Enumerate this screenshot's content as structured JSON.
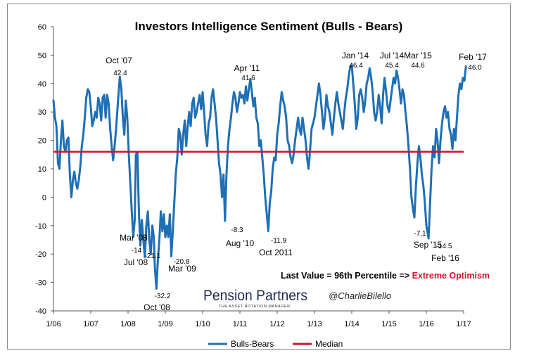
{
  "chart_data": {
    "type": "line",
    "title": "Investors Intelligence Sentiment (Bulls - Bears)",
    "ylim": [
      -40,
      60
    ],
    "yticks": [
      -40,
      -30,
      -20,
      -10,
      0,
      10,
      20,
      30,
      40,
      50,
      60
    ],
    "x_tick_labels": [
      "1/06",
      "1/07",
      "1/08",
      "1/09",
      "1/10",
      "1/11",
      "1/12",
      "1/13",
      "1/14",
      "1/15",
      "1/16",
      "1/17"
    ],
    "grid": false,
    "legend_position": "bottom",
    "series": [
      {
        "name": "Bulls-Bears",
        "color": "#1f6fb5",
        "points": [
          [
            2006.0,
            34
          ],
          [
            2006.04,
            28
          ],
          [
            2006.08,
            25
          ],
          [
            2006.12,
            12
          ],
          [
            2006.16,
            10
          ],
          [
            2006.2,
            20
          ],
          [
            2006.24,
            27
          ],
          [
            2006.28,
            18
          ],
          [
            2006.32,
            16
          ],
          [
            2006.36,
            20
          ],
          [
            2006.4,
            21
          ],
          [
            2006.44,
            8
          ],
          [
            2006.48,
            0
          ],
          [
            2006.52,
            6
          ],
          [
            2006.56,
            9
          ],
          [
            2006.6,
            5
          ],
          [
            2006.64,
            3
          ],
          [
            2006.68,
            6
          ],
          [
            2006.72,
            11
          ],
          [
            2006.76,
            18
          ],
          [
            2006.8,
            22
          ],
          [
            2006.84,
            28
          ],
          [
            2006.88,
            35
          ],
          [
            2006.92,
            38
          ],
          [
            2006.96,
            37
          ],
          [
            2007.0,
            32
          ],
          [
            2007.04,
            25
          ],
          [
            2007.08,
            27
          ],
          [
            2007.12,
            30
          ],
          [
            2007.16,
            28
          ],
          [
            2007.2,
            35
          ],
          [
            2007.24,
            33
          ],
          [
            2007.28,
            27
          ],
          [
            2007.32,
            35
          ],
          [
            2007.36,
            36
          ],
          [
            2007.4,
            28
          ],
          [
            2007.44,
            36
          ],
          [
            2007.48,
            33
          ],
          [
            2007.52,
            24
          ],
          [
            2007.56,
            18
          ],
          [
            2007.6,
            13
          ],
          [
            2007.64,
            18
          ],
          [
            2007.68,
            24
          ],
          [
            2007.72,
            32
          ],
          [
            2007.78,
            42.4
          ],
          [
            2007.82,
            38
          ],
          [
            2007.86,
            28
          ],
          [
            2007.9,
            22
          ],
          [
            2007.94,
            34
          ],
          [
            2007.98,
            28
          ],
          [
            2008.02,
            15
          ],
          [
            2008.06,
            5
          ],
          [
            2008.1,
            -5
          ],
          [
            2008.14,
            -14
          ],
          [
            2008.18,
            -8
          ],
          [
            2008.21,
            15
          ],
          [
            2008.25,
            16
          ],
          [
            2008.29,
            -5
          ],
          [
            2008.33,
            -17
          ],
          [
            2008.37,
            -8
          ],
          [
            2008.41,
            -15
          ],
          [
            2008.45,
            -21.1
          ],
          [
            2008.49,
            -10
          ],
          [
            2008.53,
            -5
          ],
          [
            2008.57,
            -15
          ],
          [
            2008.61,
            -20
          ],
          [
            2008.65,
            -10
          ],
          [
            2008.69,
            -14
          ],
          [
            2008.72,
            -25
          ],
          [
            2008.76,
            -32.2
          ],
          [
            2008.8,
            -22
          ],
          [
            2008.84,
            -15
          ],
          [
            2008.88,
            -5
          ],
          [
            2008.92,
            -12
          ],
          [
            2008.96,
            -6
          ],
          [
            2009.0,
            -14
          ],
          [
            2009.04,
            -10
          ],
          [
            2009.08,
            -14
          ],
          [
            2009.12,
            -6
          ],
          [
            2009.16,
            -20.8
          ],
          [
            2009.2,
            -12
          ],
          [
            2009.24,
            -2
          ],
          [
            2009.28,
            8
          ],
          [
            2009.32,
            14
          ],
          [
            2009.36,
            24
          ],
          [
            2009.4,
            22
          ],
          [
            2009.44,
            15
          ],
          [
            2009.48,
            22
          ],
          [
            2009.52,
            27
          ],
          [
            2009.56,
            18
          ],
          [
            2009.6,
            25
          ],
          [
            2009.64,
            30
          ],
          [
            2009.68,
            25
          ],
          [
            2009.72,
            33
          ],
          [
            2009.76,
            35
          ],
          [
            2009.8,
            28
          ],
          [
            2009.84,
            30
          ],
          [
            2009.88,
            33
          ],
          [
            2009.92,
            36
          ],
          [
            2009.96,
            31
          ],
          [
            2010.0,
            37
          ],
          [
            2010.04,
            30
          ],
          [
            2010.08,
            22
          ],
          [
            2010.12,
            18
          ],
          [
            2010.16,
            26
          ],
          [
            2010.2,
            28
          ],
          [
            2010.24,
            35
          ],
          [
            2010.28,
            38
          ],
          [
            2010.32,
            33
          ],
          [
            2010.36,
            28
          ],
          [
            2010.4,
            20
          ],
          [
            2010.44,
            12
          ],
          [
            2010.48,
            8
          ],
          [
            2010.52,
            0
          ],
          [
            2010.56,
            8
          ],
          [
            2010.6,
            -8.3
          ],
          [
            2010.64,
            8
          ],
          [
            2010.68,
            18
          ],
          [
            2010.72,
            24
          ],
          [
            2010.76,
            28
          ],
          [
            2010.8,
            33
          ],
          [
            2010.84,
            37
          ],
          [
            2010.88,
            35
          ],
          [
            2010.92,
            30
          ],
          [
            2010.96,
            33
          ],
          [
            2011.0,
            37
          ],
          [
            2011.04,
            35
          ],
          [
            2011.08,
            36
          ],
          [
            2011.12,
            33
          ],
          [
            2011.16,
            39
          ],
          [
            2011.2,
            34
          ],
          [
            2011.24,
            38
          ],
          [
            2011.28,
            41.6
          ],
          [
            2011.32,
            37
          ],
          [
            2011.36,
            32
          ],
          [
            2011.4,
            35
          ],
          [
            2011.44,
            28
          ],
          [
            2011.48,
            26
          ],
          [
            2011.52,
            18
          ],
          [
            2011.56,
            20
          ],
          [
            2011.6,
            14
          ],
          [
            2011.64,
            8
          ],
          [
            2011.68,
            0
          ],
          [
            2011.72,
            -6
          ],
          [
            2011.76,
            -11.9
          ],
          [
            2011.8,
            -2
          ],
          [
            2011.84,
            2
          ],
          [
            2011.88,
            10
          ],
          [
            2011.92,
            14
          ],
          [
            2011.96,
            13
          ],
          [
            2012.0,
            22
          ],
          [
            2012.04,
            26
          ],
          [
            2012.08,
            32
          ],
          [
            2012.12,
            37
          ],
          [
            2012.16,
            34
          ],
          [
            2012.2,
            32
          ],
          [
            2012.24,
            28
          ],
          [
            2012.28,
            20
          ],
          [
            2012.32,
            18
          ],
          [
            2012.36,
            14
          ],
          [
            2012.4,
            12
          ],
          [
            2012.44,
            15
          ],
          [
            2012.48,
            20
          ],
          [
            2012.52,
            24
          ],
          [
            2012.56,
            28
          ],
          [
            2012.6,
            24
          ],
          [
            2012.64,
            22
          ],
          [
            2012.68,
            28
          ],
          [
            2012.72,
            24
          ],
          [
            2012.76,
            20
          ],
          [
            2012.8,
            14
          ],
          [
            2012.84,
            10
          ],
          [
            2012.88,
            16
          ],
          [
            2012.92,
            24
          ],
          [
            2012.96,
            26
          ],
          [
            2013.0,
            28
          ],
          [
            2013.04,
            32
          ],
          [
            2013.08,
            36
          ],
          [
            2013.12,
            40
          ],
          [
            2013.16,
            36
          ],
          [
            2013.2,
            30
          ],
          [
            2013.24,
            24
          ],
          [
            2013.28,
            28
          ],
          [
            2013.32,
            36
          ],
          [
            2013.36,
            32
          ],
          [
            2013.4,
            30
          ],
          [
            2013.44,
            26
          ],
          [
            2013.48,
            22
          ],
          [
            2013.52,
            28
          ],
          [
            2013.56,
            33
          ],
          [
            2013.6,
            37
          ],
          [
            2013.64,
            33
          ],
          [
            2013.68,
            30
          ],
          [
            2013.72,
            27
          ],
          [
            2013.76,
            24
          ],
          [
            2013.8,
            30
          ],
          [
            2013.84,
            35
          ],
          [
            2013.88,
            38
          ],
          [
            2013.92,
            43
          ],
          [
            2013.96,
            46
          ],
          [
            2014.0,
            46.4
          ],
          [
            2014.04,
            40
          ],
          [
            2014.08,
            33
          ],
          [
            2014.12,
            24
          ],
          [
            2014.16,
            28
          ],
          [
            2014.2,
            36
          ],
          [
            2014.24,
            38
          ],
          [
            2014.28,
            35
          ],
          [
            2014.32,
            30
          ],
          [
            2014.36,
            34
          ],
          [
            2014.4,
            40
          ],
          [
            2014.44,
            42
          ],
          [
            2014.48,
            45.4
          ],
          [
            2014.52,
            42
          ],
          [
            2014.56,
            37
          ],
          [
            2014.6,
            30
          ],
          [
            2014.64,
            27
          ],
          [
            2014.68,
            30
          ],
          [
            2014.72,
            36
          ],
          [
            2014.76,
            32
          ],
          [
            2014.8,
            26
          ],
          [
            2014.84,
            36
          ],
          [
            2014.88,
            42
          ],
          [
            2014.92,
            37
          ],
          [
            2014.96,
            32
          ],
          [
            2015.0,
            30
          ],
          [
            2015.04,
            34
          ],
          [
            2015.08,
            38
          ],
          [
            2015.12,
            42
          ],
          [
            2015.16,
            40
          ],
          [
            2015.2,
            44.6
          ],
          [
            2015.24,
            42
          ],
          [
            2015.28,
            38
          ],
          [
            2015.32,
            33
          ],
          [
            2015.36,
            38
          ],
          [
            2015.4,
            36
          ],
          [
            2015.44,
            30
          ],
          [
            2015.48,
            25
          ],
          [
            2015.52,
            18
          ],
          [
            2015.56,
            10
          ],
          [
            2015.6,
            0
          ],
          [
            2015.64,
            -4
          ],
          [
            2015.68,
            -7.1
          ],
          [
            2015.72,
            4
          ],
          [
            2015.76,
            12
          ],
          [
            2015.8,
            18
          ],
          [
            2015.84,
            14
          ],
          [
            2015.88,
            8
          ],
          [
            2015.92,
            4
          ],
          [
            2015.96,
            -2
          ],
          [
            2016.0,
            -10
          ],
          [
            2016.06,
            -14.5
          ],
          [
            2016.1,
            -2
          ],
          [
            2016.14,
            10
          ],
          [
            2016.18,
            18
          ],
          [
            2016.22,
            14
          ],
          [
            2016.26,
            24
          ],
          [
            2016.3,
            20
          ],
          [
            2016.34,
            12
          ],
          [
            2016.38,
            20
          ],
          [
            2016.42,
            26
          ],
          [
            2016.46,
            30
          ],
          [
            2016.5,
            32
          ],
          [
            2016.54,
            28
          ],
          [
            2016.58,
            30
          ],
          [
            2016.62,
            24
          ],
          [
            2016.66,
            22
          ],
          [
            2016.7,
            17
          ],
          [
            2016.74,
            24
          ],
          [
            2016.78,
            20
          ],
          [
            2016.82,
            28
          ],
          [
            2016.86,
            36
          ],
          [
            2016.9,
            40
          ],
          [
            2016.94,
            38
          ],
          [
            2016.98,
            42
          ],
          [
            2017.02,
            41
          ],
          [
            2017.06,
            46.0
          ]
        ]
      },
      {
        "name": "Median",
        "color": "#d0142b",
        "value": 16
      }
    ],
    "annotations": [
      {
        "text": "Oct '07",
        "value_text": "42.4"
      },
      {
        "text": "Mar '08",
        "value_text": "-14"
      },
      {
        "text": "Jul '08",
        "value_text": "-21.1"
      },
      {
        "text": "Oct '08",
        "value_text": "-32.2"
      },
      {
        "text": "Mar '09",
        "value_text": "-20.8"
      },
      {
        "text": "Aug '10",
        "value_text": "-8.3"
      },
      {
        "text": "Apr '11",
        "value_text": "41.6"
      },
      {
        "text": "Oct 2011",
        "value_text": "-11.9"
      },
      {
        "text": "Jan '14",
        "value_text": "46.4"
      },
      {
        "text": "Jul '14",
        "value_text": "45.4"
      },
      {
        "text": "Mar '15",
        "value_text": "44.6"
      },
      {
        "text": "Sep '15",
        "value_text": "-7.1"
      },
      {
        "text": "Feb '16",
        "value_text": "-14.5"
      },
      {
        "text": "Feb '17",
        "value_text": "46.0"
      }
    ],
    "note": {
      "prefix": "Last Value = 96th Percentile => ",
      "emphasis": "Extreme Optimism",
      "emphasis_color": "#d0142b"
    }
  },
  "branding": {
    "logo_text": "Pension Partners",
    "logo_tagline": "THE ASSET ROTATION MANAGER",
    "handle": "@CharlieBilello"
  }
}
